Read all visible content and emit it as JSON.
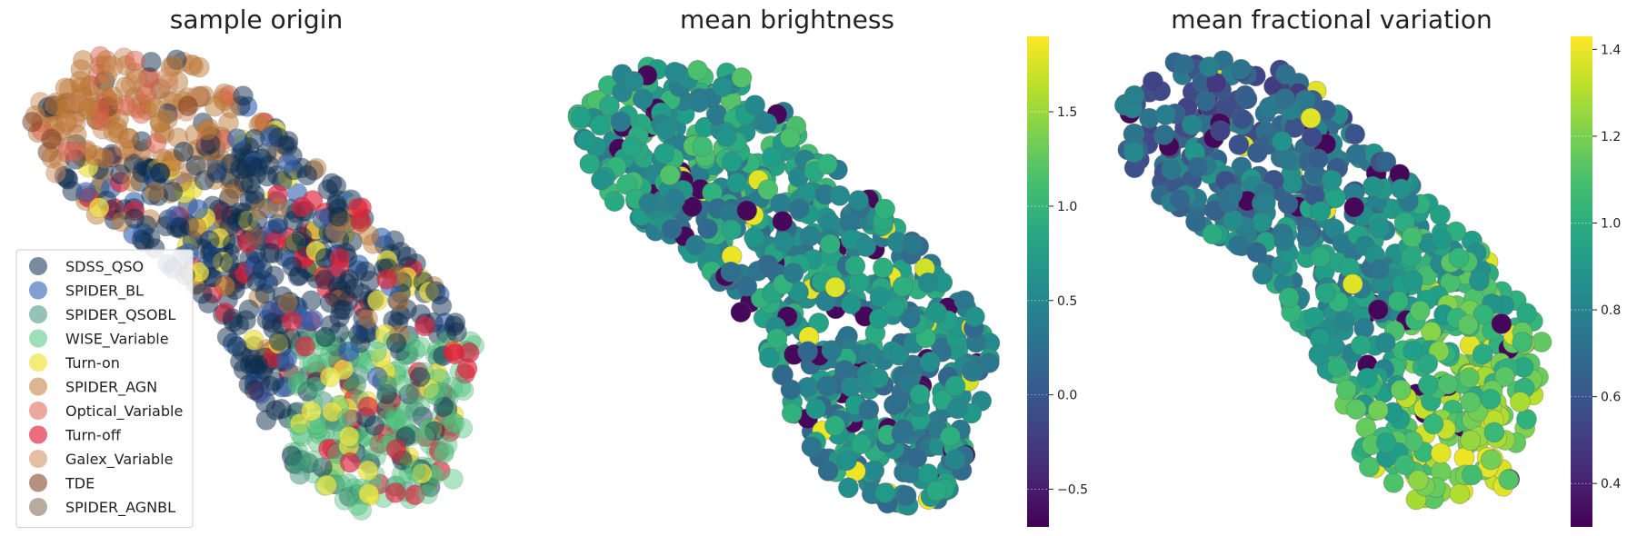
{
  "chart_data": [
    {
      "type": "scatter",
      "title": "sample origin",
      "legend_position": "lower-left",
      "grid": false,
      "axes_visible": false,
      "series": [
        {
          "name": "SDSS_QSO",
          "color": "#0b2c4e",
          "alpha": 0.5,
          "points": [
            [
              0.35,
              0.25
            ],
            [
              0.42,
              0.3
            ],
            [
              0.5,
              0.35
            ],
            [
              0.45,
              0.4
            ],
            [
              0.55,
              0.42
            ],
            [
              0.6,
              0.45
            ],
            [
              0.65,
              0.5
            ],
            [
              0.7,
              0.55
            ],
            [
              0.62,
              0.6
            ],
            [
              0.75,
              0.6
            ],
            [
              0.72,
              0.68
            ],
            [
              0.8,
              0.7
            ],
            [
              0.85,
              0.78
            ],
            [
              0.78,
              0.82
            ],
            [
              0.9,
              0.85
            ],
            [
              0.5,
              0.22
            ],
            [
              0.3,
              0.3
            ],
            [
              0.58,
              0.52
            ],
            [
              0.68,
              0.64
            ],
            [
              0.82,
              0.92
            ]
          ]
        },
        {
          "name": "SPIDER_BL",
          "color": "#2f5fb3",
          "alpha": 0.6,
          "points": [
            [
              0.7,
              0.72
            ],
            [
              0.76,
              0.78
            ]
          ]
        },
        {
          "name": "SPIDER_QSOBL",
          "color": "#3d8f7a",
          "alpha": 0.5,
          "points": [
            [
              0.78,
              0.8
            ],
            [
              0.84,
              0.86
            ]
          ]
        },
        {
          "name": "WISE_Variable",
          "color": "#4fc47f",
          "alpha": 0.45,
          "points": [
            [
              0.8,
              0.88
            ],
            [
              0.86,
              0.92
            ],
            [
              0.9,
              0.96
            ],
            [
              0.84,
              1.0
            ],
            [
              0.92,
              1.02
            ],
            [
              0.78,
              0.94
            ],
            [
              0.88,
              0.82
            ],
            [
              0.94,
              0.9
            ]
          ]
        },
        {
          "name": "Turn-on",
          "color": "#f0e442",
          "alpha": 0.7,
          "points": [
            [
              0.66,
              0.78
            ],
            [
              0.7,
              0.92
            ],
            [
              0.62,
              0.86
            ],
            [
              0.74,
              1.0
            ],
            [
              0.76,
              0.6
            ]
          ]
        },
        {
          "name": "SPIDER_AGN",
          "color": "#c07a35",
          "alpha": 0.5,
          "points": [
            [
              0.1,
              0.1
            ],
            [
              0.15,
              0.15
            ],
            [
              0.2,
              0.12
            ],
            [
              0.3,
              0.18
            ],
            [
              0.4,
              0.2
            ],
            [
              0.45,
              0.35
            ],
            [
              0.55,
              0.38
            ]
          ]
        },
        {
          "name": "Optical_Variable",
          "color": "#de5f4e",
          "alpha": 0.5,
          "points": [
            [
              0.05,
              0.2
            ],
            [
              0.12,
              0.25
            ]
          ]
        },
        {
          "name": "Turn-off",
          "color": "#e0203a",
          "alpha": 0.65,
          "points": [
            [
              0.6,
              0.38
            ],
            [
              0.68,
              0.5
            ],
            [
              0.78,
              0.55
            ],
            [
              0.86,
              0.66
            ],
            [
              0.92,
              0.72
            ],
            [
              0.95,
              0.76
            ],
            [
              0.8,
              0.95
            ],
            [
              0.74,
              0.85
            ]
          ]
        },
        {
          "name": "Galex_Variable",
          "color": "#cf8a5a",
          "alpha": 0.5,
          "points": [
            [
              0.2,
              0.05
            ],
            [
              0.25,
              0.08
            ],
            [
              0.08,
              0.3
            ]
          ]
        },
        {
          "name": "TDE",
          "color": "#7a3518",
          "alpha": 0.5,
          "points": [
            [
              0.03,
              0.18
            ],
            [
              0.07,
              0.22
            ]
          ]
        },
        {
          "name": "SPIDER_AGNBL",
          "color": "#7b6650",
          "alpha": 0.5,
          "points": [
            [
              0.4,
              0.28
            ],
            [
              0.5,
              0.45
            ]
          ]
        }
      ]
    },
    {
      "type": "scatter",
      "title": "mean brightness",
      "grid": false,
      "axes_visible": false,
      "colormap": "viridis",
      "colorbar": {
        "min": -0.7,
        "max": 1.9,
        "ticks": [
          -0.5,
          0.0,
          0.5,
          1.0,
          1.5
        ],
        "tick_labels": [
          "−0.5",
          "0.0",
          "0.5",
          "1.0",
          "1.5"
        ]
      }
    },
    {
      "type": "scatter",
      "title": "mean fractional variation",
      "grid": false,
      "axes_visible": false,
      "colormap": "viridis",
      "colorbar": {
        "min": 0.3,
        "max": 1.43,
        "ticks": [
          0.4,
          0.6,
          0.8,
          1.0,
          1.2,
          1.4
        ],
        "tick_labels": [
          "0.4",
          "0.6",
          "0.8",
          "1.0",
          "1.2",
          "1.4"
        ]
      }
    }
  ]
}
